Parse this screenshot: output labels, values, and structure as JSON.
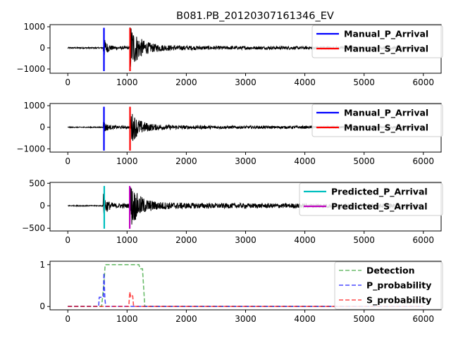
{
  "figure": {
    "title": "B081.PB_20120307161346_EV"
  },
  "chart_data": [
    {
      "type": "line",
      "panel": "waveform-1",
      "xlim": [
        -300,
        6300
      ],
      "ylim": [
        -1200,
        1100
      ],
      "xticks": [
        0,
        1000,
        2000,
        3000,
        4000,
        5000,
        6000
      ],
      "yticks": [
        1000,
        0,
        -1000
      ],
      "waveform": {
        "length": 6000,
        "noise_amp": 30,
        "p_arrival": 600,
        "s_arrival": 1050,
        "p_amp": 500,
        "s_amp": 1050,
        "coda_amp": 130
      },
      "markers": [
        {
          "name": "Manual_P_Arrival",
          "x": 610,
          "y_range": [
            -1100,
            950
          ],
          "color": "#0000ff"
        },
        {
          "name": "Manual_S_Arrival",
          "x": 1050,
          "y_range": [
            -1100,
            950
          ],
          "color": "#ff0000"
        }
      ],
      "legend": {
        "placement": "upper-right",
        "entries": [
          "Manual_P_Arrival",
          "Manual_S_Arrival"
        ]
      }
    },
    {
      "type": "line",
      "panel": "waveform-2",
      "xlim": [
        -300,
        6300
      ],
      "ylim": [
        -1150,
        1100
      ],
      "xticks": [
        0,
        1000,
        2000,
        3000,
        4000,
        5000,
        6000
      ],
      "yticks": [
        1000,
        0,
        -1000
      ],
      "waveform": {
        "length": 6000,
        "noise_amp": 20,
        "p_arrival": 600,
        "s_arrival": 1050,
        "p_amp": 300,
        "s_amp": 700,
        "coda_amp": 90
      },
      "markers": [
        {
          "name": "Manual_P_Arrival",
          "x": 610,
          "y_range": [
            -1080,
            950
          ],
          "color": "#0000ff"
        },
        {
          "name": "Manual_S_Arrival",
          "x": 1050,
          "y_range": [
            -1080,
            950
          ],
          "color": "#ff0000"
        }
      ],
      "legend": {
        "placement": "upper-right",
        "entries": [
          "Manual_P_Arrival",
          "Manual_S_Arrival"
        ]
      }
    },
    {
      "type": "line",
      "panel": "waveform-3",
      "xlim": [
        -300,
        6300
      ],
      "ylim": [
        -560,
        520
      ],
      "xticks": [
        0,
        1000,
        2000,
        3000,
        4000,
        5000,
        6000
      ],
      "yticks": [
        500,
        0,
        -500
      ],
      "waveform": {
        "length": 6000,
        "noise_amp": 10,
        "p_arrival": 600,
        "s_arrival": 1050,
        "p_amp": 260,
        "s_amp": 430,
        "coda_amp": 60
      },
      "markers": [
        {
          "name": "Predicted_P_Arrival",
          "x": 615,
          "y_range": [
            -510,
            440
          ],
          "color": "#00bfbf"
        },
        {
          "name": "Predicted_S_Arrival",
          "x": 1045,
          "y_range": [
            -510,
            440
          ],
          "color": "#bf00bf"
        }
      ],
      "legend": {
        "placement": "upper-right",
        "entries": [
          "Predicted_P_Arrival",
          "Predicted_S_Arrival"
        ]
      }
    },
    {
      "type": "line",
      "panel": "probabilities",
      "xlim": [
        -300,
        6300
      ],
      "ylim": [
        -0.08,
        1.08
      ],
      "xticks": [
        0,
        1000,
        2000,
        3000,
        4000,
        5000,
        6000
      ],
      "yticks": [
        1,
        0
      ],
      "series": [
        {
          "name": "Detection",
          "color": "#2ca02c",
          "dash": "dashed",
          "x": [
            0,
            570,
            610,
            630,
            1200,
            1220,
            1260,
            1300,
            6000
          ],
          "y": [
            0,
            0,
            0.55,
            1.0,
            1.0,
            0.9,
            0.9,
            0,
            0
          ]
        },
        {
          "name": "P_probability",
          "color": "#0000ff",
          "dash": "dashed",
          "x": [
            0,
            520,
            530,
            600,
            610,
            625,
            640,
            6000
          ],
          "y": [
            0,
            0,
            0.22,
            0.22,
            0.8,
            0.2,
            0,
            0
          ]
        },
        {
          "name": "S_probability",
          "color": "#ff0000",
          "dash": "dashed",
          "x": [
            0,
            1030,
            1045,
            1060,
            1070,
            1095,
            1110,
            6000
          ],
          "y": [
            0,
            0,
            0.35,
            0.25,
            0.28,
            0.25,
            0,
            0
          ]
        }
      ],
      "legend": {
        "placement": "upper-right",
        "entries": [
          "Detection",
          "P_probability",
          "S_probability"
        ]
      }
    }
  ]
}
